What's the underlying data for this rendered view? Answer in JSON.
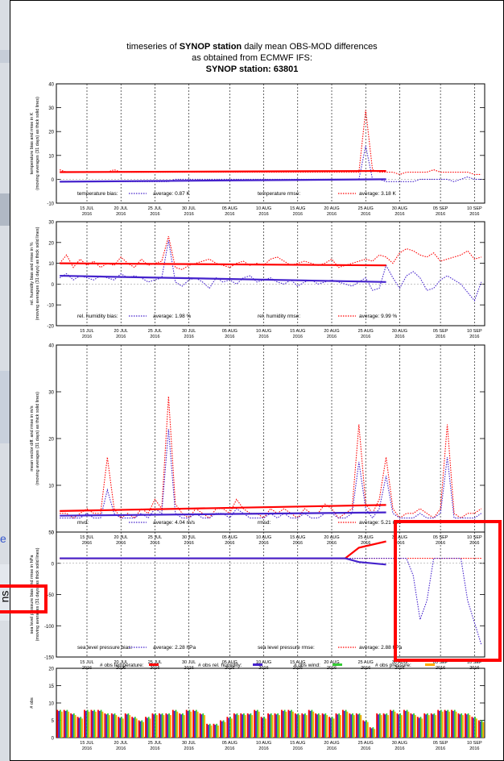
{
  "header": {
    "line1_pre": "timeseries of ",
    "line1_bold": "SYNOP station",
    "line1_post": " daily mean OBS-MOD differences",
    "line2": "as obtained from ECMWF IFS:",
    "line3": "SYNOP station: 63801"
  },
  "left_fragments": {
    "char_a": "e",
    "char_b": "ns"
  },
  "colors": {
    "red": "#ff0000",
    "blue": "#4422cc",
    "green": "#33cc33",
    "orange": "#ffaa00",
    "highlight": "#ff0000"
  },
  "x_ticks": [
    {
      "d": "15 JUL",
      "y": "2016"
    },
    {
      "d": "20 JUL",
      "y": "2016"
    },
    {
      "d": "25 JUL",
      "y": "2016"
    },
    {
      "d": "30 JUL",
      "y": "2016"
    },
    {
      "d": "05 AUG",
      "y": "2016"
    },
    {
      "d": "10 AUG",
      "y": "2016"
    },
    {
      "d": "15 AUG",
      "y": "2016"
    },
    {
      "d": "20 AUG",
      "y": "2016"
    },
    {
      "d": "25 AUG",
      "y": "2016"
    },
    {
      "d": "30 AUG",
      "y": "2016"
    },
    {
      "d": "05 SEP",
      "y": "2016"
    },
    {
      "d": "10 SEP",
      "y": "2016"
    }
  ],
  "chart_data": [
    {
      "type": "line",
      "ylabel": "temperature bias and rmse in K\n(moving averages (31 days) as thick solid lines)",
      "ylim": [
        -10,
        40
      ],
      "yticks": [
        -10,
        0,
        10,
        20,
        30,
        40
      ],
      "legend": {
        "bias_label": "temperature bias:",
        "bias_avg": "average:  0.87 K",
        "rmse_label": "temperature rmse:",
        "rmse_avg": "average:  3.18 K"
      },
      "rmse": [
        4,
        3,
        3,
        3,
        3,
        3,
        3,
        3,
        4,
        3,
        3,
        3,
        3,
        3,
        3,
        3,
        3,
        3,
        3,
        3,
        3,
        3,
        3,
        3,
        3,
        3,
        3,
        3,
        3,
        3,
        3,
        3,
        3,
        3,
        3,
        3,
        3,
        3,
        3,
        3,
        3,
        3,
        3,
        3,
        3,
        29,
        4,
        3,
        3,
        3,
        2,
        3,
        3,
        3,
        3,
        4,
        3,
        3,
        3,
        3,
        3,
        2,
        2
      ],
      "bias": [
        -1,
        -1,
        -1,
        -1,
        -1,
        -1,
        -1,
        -1,
        -1,
        -1,
        -1,
        -1,
        -1,
        -1,
        -1,
        -1,
        -1,
        0,
        0,
        0,
        0,
        0,
        0,
        0,
        0,
        0,
        0,
        0,
        0,
        0,
        0,
        0,
        0,
        0,
        0,
        0,
        0,
        0,
        0,
        0,
        0,
        0,
        0,
        0,
        0,
        14,
        0,
        0,
        -1,
        -1,
        -1,
        -1,
        -1,
        0,
        0,
        0,
        0,
        0,
        -1,
        0,
        1,
        0,
        0
      ],
      "rmse_ma": {
        "x": [
          0,
          48
        ],
        "y": [
          3,
          3.5
        ]
      },
      "bias_ma": {
        "x": [
          0,
          48
        ],
        "y": [
          -1,
          0
        ]
      }
    },
    {
      "type": "line",
      "ylabel": "rel. humidity bias and rmse in %\n(moving averages (31 days) as thick solid lines)",
      "ylim": [
        -20,
        30
      ],
      "yticks": [
        -20,
        -10,
        0,
        10,
        20,
        30
      ],
      "legend": {
        "bias_label": "rel. humidity bias:",
        "bias_avg": "average:  1.98 %",
        "rmse_label": "rel. humidity rmse:",
        "rmse_avg": "average:  9.99 %"
      },
      "rmse": [
        10,
        14,
        8,
        12,
        9,
        11,
        8,
        10,
        9,
        13,
        10,
        8,
        12,
        9,
        10,
        11,
        23,
        8,
        7,
        9,
        10,
        11,
        12,
        10,
        9,
        8,
        10,
        11,
        9,
        10,
        9,
        12,
        13,
        11,
        9,
        10,
        11,
        10,
        9,
        10,
        12,
        8,
        9,
        10,
        11,
        12,
        11,
        14,
        13,
        10,
        15,
        17,
        16,
        14,
        13,
        15,
        11,
        12,
        13,
        14,
        16,
        12,
        13
      ],
      "bias": [
        3,
        5,
        2,
        4,
        3,
        2,
        4,
        3,
        2,
        5,
        3,
        4,
        3,
        1,
        2,
        3,
        21,
        1,
        -1,
        2,
        3,
        1,
        -2,
        3,
        1,
        2,
        0,
        3,
        4,
        1,
        2,
        3,
        1,
        0,
        2,
        -1,
        1,
        2,
        0,
        1,
        2,
        1,
        0,
        -1,
        1,
        3,
        -3,
        -2,
        9,
        3,
        -2,
        4,
        6,
        3,
        -3,
        -2,
        2,
        4,
        2,
        0,
        -4,
        -8,
        1
      ],
      "rmse_ma": {
        "x": [
          0,
          48
        ],
        "y": [
          10,
          9
        ]
      },
      "bias_ma": {
        "x": [
          0,
          48
        ],
        "y": [
          4,
          1
        ]
      }
    },
    {
      "type": "line",
      "ylabel": "mean vector diff. and rmse in m/s\n(moving averages (31 days) as thick solid lines)",
      "ylim": [
        0,
        40
      ],
      "yticks": [
        0,
        10,
        20,
        30,
        40
      ],
      "legend": {
        "bias_label": "mvd:",
        "bias_avg": "average:  4.04 m/s",
        "rmse_label": "rmsd:",
        "rmse_avg": "average:  5.21 m/s"
      },
      "rmse": [
        4,
        4,
        3,
        4,
        5,
        4,
        4,
        16,
        5,
        3,
        4,
        3,
        5,
        4,
        7,
        5,
        29,
        6,
        4,
        3,
        5,
        4,
        3,
        5,
        5,
        4,
        7,
        5,
        4,
        4,
        3,
        5,
        4,
        5,
        4,
        3,
        5,
        4,
        4,
        6,
        5,
        3,
        4,
        5,
        23,
        6,
        4,
        7,
        16,
        5,
        3,
        4,
        4,
        5,
        4,
        3,
        5,
        23,
        4,
        3,
        4,
        4,
        5
      ],
      "bias": [
        3,
        3,
        3,
        3,
        4,
        3,
        3,
        9,
        4,
        3,
        3,
        3,
        4,
        3,
        5,
        4,
        22,
        4,
        3,
        3,
        4,
        3,
        3,
        4,
        4,
        3,
        5,
        4,
        3,
        3,
        3,
        4,
        3,
        4,
        3,
        3,
        4,
        3,
        3,
        4,
        4,
        3,
        3,
        4,
        15,
        5,
        3,
        5,
        12,
        4,
        3,
        3,
        3,
        4,
        3,
        3,
        4,
        16,
        3,
        3,
        3,
        3,
        4
      ],
      "rmse_ma": {
        "x": [
          0,
          48
        ],
        "y": [
          4.5,
          5.8
        ]
      },
      "bias_ma": {
        "x": [
          0,
          48
        ],
        "y": [
          3.5,
          4.2
        ]
      }
    },
    {
      "type": "line",
      "ylabel": "sea level pressure bias and rmse in hPa\n(moving averages (31 days) as thick solid lines)",
      "ylim": [
        -150,
        50
      ],
      "yticks": [
        -150,
        -100,
        -50,
        0,
        50
      ],
      "legend": {
        "bias_label": "sea level pressure bias:",
        "bias_avg": "average:  2.28 hPa",
        "rmse_label": "sea level pressure rmse:",
        "rmse_avg": "average:  2.88 hPa"
      },
      "rmse": [
        8,
        8,
        8,
        8,
        8,
        8,
        8,
        8,
        8,
        8,
        8,
        8,
        8,
        8,
        8,
        8,
        8,
        8,
        8,
        8,
        8,
        8,
        8,
        8,
        8,
        8,
        8,
        8,
        8,
        8,
        8,
        8,
        8,
        8,
        8,
        8,
        8,
        8,
        8,
        8,
        8,
        8,
        8,
        8,
        8,
        8,
        8,
        8,
        8,
        8,
        8,
        8,
        8,
        8,
        8,
        8,
        8,
        8,
        8,
        8,
        8,
        8,
        8
      ],
      "bias": [
        8,
        8,
        8,
        8,
        8,
        8,
        8,
        8,
        8,
        8,
        8,
        8,
        8,
        8,
        8,
        8,
        8,
        8,
        8,
        8,
        8,
        8,
        8,
        8,
        8,
        8,
        8,
        8,
        8,
        8,
        8,
        8,
        8,
        8,
        8,
        8,
        8,
        8,
        8,
        8,
        8,
        8,
        8,
        8,
        8,
        8,
        8,
        8,
        8,
        8,
        8,
        8,
        -20,
        -90,
        -60,
        8,
        8,
        8,
        8,
        8,
        -60,
        -95,
        -130
      ],
      "rmse_ma": {
        "x": [
          0,
          42,
          44,
          48
        ],
        "y": [
          8,
          8,
          25,
          35
        ]
      },
      "bias_ma": {
        "x": [
          0,
          42,
          44,
          48
        ],
        "y": [
          8,
          8,
          2,
          -2
        ]
      }
    },
    {
      "type": "bar",
      "ylabel": "# obs",
      "ylim": [
        0,
        20
      ],
      "yticks": [
        0,
        5,
        10,
        15,
        20
      ],
      "legend": {
        "t_label": "# obs temperature:",
        "h_label": "# obs rel. humidity:",
        "w_label": "# obs wind:",
        "p_label": "# obs pressure:"
      },
      "counts": [
        8,
        8,
        7,
        6,
        8,
        8,
        8,
        7,
        7,
        6,
        7,
        6,
        5,
        6,
        7,
        7,
        7,
        8,
        7,
        8,
        8,
        7,
        4,
        4,
        5,
        6,
        7,
        7,
        7,
        8,
        6,
        7,
        7,
        8,
        8,
        7,
        7,
        8,
        7,
        7,
        6,
        7,
        8,
        7,
        7,
        5,
        3,
        7,
        7,
        8,
        7,
        8,
        7,
        6,
        7,
        7,
        8,
        8,
        8,
        7,
        7,
        6,
        5
      ]
    }
  ]
}
